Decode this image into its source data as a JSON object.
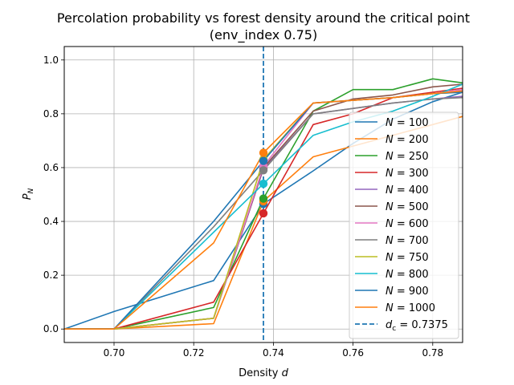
{
  "chart_data": {
    "type": "line",
    "title_line1": "Percolation probability vs forest density around the critical point",
    "title_line2": "(env_index 0.75)",
    "xlabel_text": "Density ",
    "xlabel_var": "d",
    "ylabel_var": "P",
    "ylabel_sub": "N",
    "xlim": [
      0.6875,
      0.7875
    ],
    "ylim": [
      -0.05,
      1.05
    ],
    "xticks": [
      0.7,
      0.72,
      0.74,
      0.76,
      0.78
    ],
    "xtick_labels": [
      "0.70",
      "0.72",
      "0.74",
      "0.76",
      "0.78"
    ],
    "yticks": [
      0.0,
      0.2,
      0.4,
      0.6,
      0.8,
      1.0
    ],
    "ytick_labels": [
      "0.0",
      "0.2",
      "0.4",
      "0.6",
      "0.8",
      "1.0"
    ],
    "grid": true,
    "legend_position": "lower-right",
    "critical": {
      "x": 0.7375,
      "label_prefix": "d",
      "label_sub": "c",
      "label_value": " = 0.7375",
      "color": "#1f77b4"
    },
    "series": [
      {
        "name": "100",
        "color": "#1f77b4",
        "x": [
          0.6875,
          0.7,
          0.725,
          0.7375,
          0.75,
          0.76,
          0.77,
          0.78,
          0.7875
        ],
        "y": [
          0.0,
          0.065,
          0.18,
          0.465,
          0.588,
          0.69,
          0.78,
          0.845,
          0.88
        ],
        "marker_y": 0.465
      },
      {
        "name": "200",
        "color": "#ff7f0e",
        "x": [
          0.6875,
          0.7,
          0.725,
          0.7375,
          0.75,
          0.76,
          0.77,
          0.78,
          0.7875
        ],
        "y": [
          0.0,
          0.0,
          0.02,
          0.475,
          0.64,
          0.68,
          0.72,
          0.76,
          0.79
        ],
        "marker_y": 0.475
      },
      {
        "name": "250",
        "color": "#2ca02c",
        "x": [
          0.6875,
          0.7,
          0.725,
          0.7375,
          0.75,
          0.76,
          0.77,
          0.78,
          0.7875
        ],
        "y": [
          0.0,
          0.0,
          0.08,
          0.485,
          0.81,
          0.89,
          0.89,
          0.93,
          0.915
        ],
        "marker_y": 0.485
      },
      {
        "name": "300",
        "color": "#d62728",
        "x": [
          0.6875,
          0.7,
          0.725,
          0.7375,
          0.75,
          0.76,
          0.77,
          0.78,
          0.7875
        ],
        "y": [
          0.0,
          0.0,
          0.1,
          0.43,
          0.76,
          0.8,
          0.86,
          0.88,
          0.895
        ],
        "marker_y": 0.43
      },
      {
        "name": "400",
        "color": "#9467bd",
        "x": [
          0.6875,
          0.7,
          0.725,
          0.7375,
          0.75,
          0.76,
          0.77,
          0.78,
          0.7875
        ],
        "y": [
          0.0,
          0.0,
          0.04,
          0.595,
          0.8,
          0.82,
          0.84,
          0.855,
          0.865
        ],
        "marker_y": 0.595
      },
      {
        "name": "500",
        "color": "#8c564b",
        "x": [
          0.6875,
          0.7,
          0.725,
          0.7375,
          0.75,
          0.76,
          0.77,
          0.78,
          0.7875
        ],
        "y": [
          0.0,
          0.0,
          0.04,
          0.6,
          0.81,
          0.855,
          0.87,
          0.9,
          0.91
        ],
        "marker_y": 0.6
      },
      {
        "name": "600",
        "color": "#e377c2",
        "x": [
          0.6875,
          0.7,
          0.725,
          0.7375,
          0.75,
          0.76,
          0.77,
          0.78,
          0.7875
        ],
        "y": [
          0.0,
          0.0,
          0.04,
          0.605,
          0.84,
          0.85,
          0.86,
          0.875,
          0.89
        ],
        "marker_y": 0.605
      },
      {
        "name": "700",
        "color": "#7f7f7f",
        "x": [
          0.6875,
          0.7,
          0.725,
          0.7375,
          0.75,
          0.76,
          0.77,
          0.78,
          0.7875
        ],
        "y": [
          0.0,
          0.0,
          0.38,
          0.59,
          0.8,
          0.82,
          0.84,
          0.855,
          0.86
        ],
        "marker_y": 0.59
      },
      {
        "name": "750",
        "color": "#bcbd22",
        "x": [
          0.6875,
          0.7,
          0.725,
          0.7375,
          0.75,
          0.76,
          0.77,
          0.78,
          0.7875
        ],
        "y": [
          0.0,
          0.0,
          0.04,
          0.63,
          0.84,
          0.85,
          0.86,
          0.875,
          0.88
        ],
        "marker_y": 0.63
      },
      {
        "name": "800",
        "color": "#17becf",
        "x": [
          0.6875,
          0.7,
          0.725,
          0.7375,
          0.75,
          0.76,
          0.77,
          0.78,
          0.7875
        ],
        "y": [
          0.0,
          0.0,
          0.36,
          0.54,
          0.72,
          0.77,
          0.81,
          0.865,
          0.91
        ],
        "marker_y": 0.54
      },
      {
        "name": "900",
        "color": "#1f77b4",
        "x": [
          0.6875,
          0.7,
          0.725,
          0.7375,
          0.75,
          0.76,
          0.77,
          0.78,
          0.7875
        ],
        "y": [
          0.0,
          0.0,
          0.4,
          0.625,
          0.84,
          0.85,
          0.86,
          0.875,
          0.88
        ],
        "marker_y": 0.625
      },
      {
        "name": "1000",
        "color": "#ff7f0e",
        "x": [
          0.6875,
          0.7,
          0.725,
          0.7375,
          0.75,
          0.76,
          0.77,
          0.78,
          0.7875
        ],
        "y": [
          0.0,
          0.0,
          0.32,
          0.655,
          0.84,
          0.85,
          0.86,
          0.875,
          0.885
        ],
        "marker_y": 0.655
      }
    ],
    "legend_label_prefix": "N",
    "legend_label_eq": " = "
  }
}
